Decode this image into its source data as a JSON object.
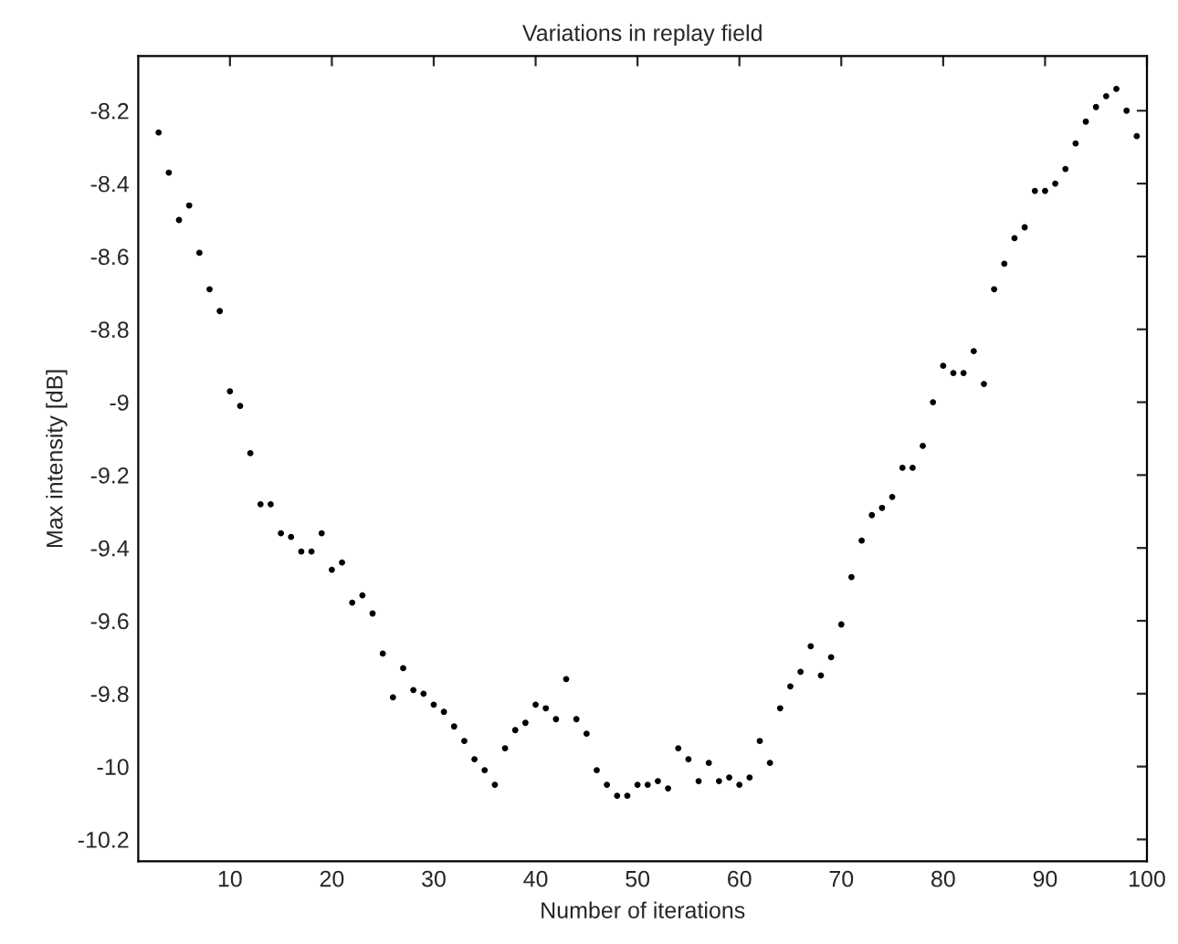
{
  "chart_data": {
    "type": "scatter",
    "title": "Variations in replay field",
    "xlabel": "Number of iterations",
    "ylabel": "Max intensity [dB]",
    "x": [
      3,
      4,
      5,
      6,
      7,
      8,
      9,
      10,
      11,
      12,
      13,
      14,
      15,
      16,
      17,
      18,
      19,
      20,
      21,
      22,
      23,
      24,
      25,
      26,
      27,
      28,
      29,
      30,
      31,
      32,
      33,
      34,
      35,
      36,
      37,
      38,
      39,
      40,
      41,
      42,
      43,
      44,
      45,
      46,
      47,
      48,
      49,
      50,
      51,
      52,
      53,
      54,
      55,
      56,
      57,
      58,
      59,
      60,
      61,
      62,
      63,
      64,
      65,
      66,
      67,
      68,
      69,
      70,
      71,
      72,
      73,
      74,
      75,
      76,
      77,
      78,
      79,
      80,
      81,
      82,
      83,
      84,
      85,
      86,
      87,
      88,
      89,
      90,
      91,
      92,
      93,
      94,
      95,
      96,
      97,
      98,
      99
    ],
    "series": [
      {
        "color": "#000000",
        "values": [
          -8.26,
          -8.37,
          -8.5,
          -8.46,
          -8.59,
          -8.69,
          -8.75,
          -8.97,
          -9.01,
          -9.14,
          -9.28,
          -9.28,
          -9.36,
          -9.37,
          -9.41,
          -9.41,
          -9.36,
          -9.46,
          -9.44,
          -9.55,
          -9.53,
          -9.58,
          -9.69,
          -9.81,
          -9.73,
          -9.79,
          -9.8,
          -9.83,
          -9.85,
          -9.89,
          -9.93,
          -9.98,
          -10.01,
          -10.05,
          -9.95,
          -9.9,
          -9.88,
          -9.83,
          -9.84,
          -9.87,
          -9.76,
          -9.87,
          -9.91,
          -10.01,
          -10.05,
          -10.08,
          -10.08,
          -10.05,
          -10.05,
          -10.04,
          -10.06,
          -9.95,
          -9.98,
          -10.04,
          -9.99,
          -10.04,
          -10.03,
          -10.05,
          -10.03,
          -9.93,
          -9.99,
          -9.84,
          -9.78,
          -9.74,
          -9.67,
          -9.75,
          -9.7,
          -9.61,
          -9.48,
          -9.38,
          -9.31,
          -9.29,
          -9.26,
          -9.18,
          -9.18,
          -9.12,
          -9.0,
          -8.9,
          -8.92,
          -8.92,
          -8.86,
          -8.95,
          -8.69,
          -8.62,
          -8.55,
          -8.52,
          -8.42,
          -8.42,
          -8.4,
          -8.36,
          -8.29,
          -8.23,
          -8.19,
          -8.16,
          -8.14,
          -8.2,
          -8.27
        ]
      }
    ],
    "marker": "circle",
    "grid": false,
    "legend": false,
    "xlim": [
      1,
      100
    ],
    "xticks": [
      10,
      20,
      30,
      40,
      50,
      60,
      70,
      80,
      90,
      100
    ],
    "ylim": [
      -10.26,
      -8.05
    ],
    "yticks": [
      -10.2,
      -10,
      -9.8,
      -9.6,
      -9.4,
      -9.2,
      -9,
      -8.8,
      -8.6,
      -8.4,
      -8.2
    ]
  }
}
